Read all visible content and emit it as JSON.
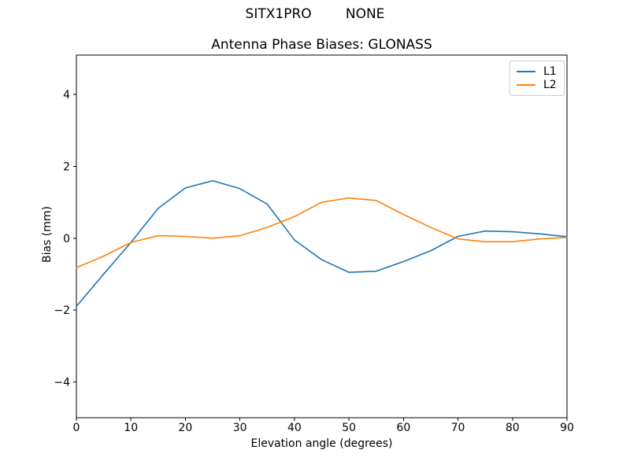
{
  "figure": {
    "suptitle": "SITX1PRO        NONE"
  },
  "chart_data": {
    "type": "line",
    "title": "Antenna Phase Biases: GLONASS",
    "xlabel": "Elevation angle (degrees)",
    "ylabel": "Bias (mm)",
    "xlim": [
      0,
      90
    ],
    "ylim": [
      -5.0,
      5.1
    ],
    "xticks": [
      0,
      10,
      20,
      30,
      40,
      50,
      60,
      70,
      80,
      90
    ],
    "xticklabels": [
      "0",
      "10",
      "20",
      "30",
      "40",
      "50",
      "60",
      "70",
      "80",
      "90"
    ],
    "yticks": [
      -4,
      -2,
      0,
      2,
      4
    ],
    "yticklabels": [
      "−4",
      "−2",
      "0",
      "2",
      "4"
    ],
    "grid": false,
    "legend_position": "upper right",
    "x": [
      0,
      5,
      10,
      15,
      20,
      25,
      30,
      35,
      40,
      45,
      50,
      55,
      60,
      65,
      70,
      75,
      80,
      85,
      90
    ],
    "series": [
      {
        "name": "L1",
        "color": "#1f77b4",
        "values": [
          -1.9,
          -1.0,
          -0.12,
          0.83,
          1.4,
          1.6,
          1.38,
          0.95,
          -0.05,
          -0.6,
          -0.95,
          -0.92,
          -0.65,
          -0.35,
          0.05,
          0.2,
          0.18,
          0.12,
          0.04
        ]
      },
      {
        "name": "L2",
        "color": "#ff7f0e",
        "values": [
          -0.82,
          -0.5,
          -0.12,
          0.07,
          0.05,
          0.0,
          0.07,
          0.3,
          0.6,
          1.0,
          1.12,
          1.05,
          0.66,
          0.3,
          -0.02,
          -0.1,
          -0.1,
          -0.02,
          0.02
        ]
      }
    ]
  }
}
